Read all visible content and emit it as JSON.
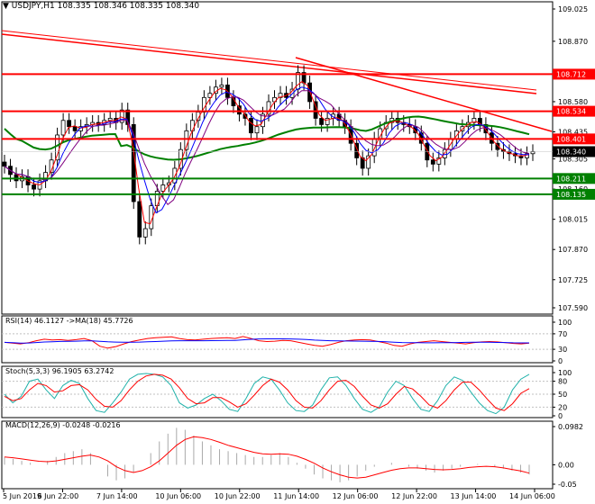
{
  "header": {
    "symbol": "USDJPY,H1",
    "ohlc": "108.335 108.346 108.335 108.340"
  },
  "chart_data": [
    {
      "type": "line",
      "title": "USDJPY,H1",
      "ylim": [
        107.59,
        109.025
      ],
      "y_ticks": [
        "109.025",
        "108.870",
        "108.725",
        "108.580",
        "108.435",
        "108.305",
        "108.160",
        "108.015",
        "107.870",
        "107.725",
        "107.590"
      ],
      "x_labels": [
        "5 Jun 2019",
        "6 Jun 22:00",
        "7 Jun 14:00",
        "10 Jun 06:00",
        "10 Jun 22:00",
        "11 Jun 14:00",
        "12 Jun 06:00",
        "12 Jun 22:00",
        "13 Jun 14:00",
        "14 Jun 06:00"
      ],
      "current_price": "108.340",
      "levels": [
        {
          "label": "108.712",
          "value": 108.712,
          "color": "#ff0000"
        },
        {
          "label": "108.534",
          "value": 108.534,
          "color": "#ff0000"
        },
        {
          "label": "108.401",
          "value": 108.401,
          "color": "#ff0000"
        },
        {
          "label": "108.211",
          "value": 108.211,
          "color": "#008000"
        },
        {
          "label": "108.135",
          "value": 108.135,
          "color": "#008000"
        }
      ],
      "close_series": [
        108.27,
        108.23,
        108.2,
        108.22,
        108.18,
        108.16,
        108.2,
        108.24,
        108.3,
        108.42,
        108.49,
        108.46,
        108.44,
        108.46,
        108.47,
        108.48,
        108.47,
        108.49,
        108.5,
        108.48,
        108.54,
        108.47,
        108.1,
        107.93,
        107.97,
        108.08,
        108.15,
        108.18,
        108.19,
        108.26,
        108.35,
        108.44,
        108.49,
        108.53,
        108.6,
        108.62,
        108.65,
        108.66,
        108.6,
        108.56,
        108.52,
        108.5,
        108.43,
        108.46,
        108.52,
        108.58,
        108.6,
        108.62,
        108.6,
        108.64,
        108.72,
        108.67,
        108.58,
        108.5,
        108.47,
        108.5,
        108.52,
        108.49,
        108.46,
        108.38,
        108.31,
        108.26,
        108.32,
        108.4,
        108.45,
        108.48,
        108.5,
        108.48,
        108.47,
        108.46,
        108.43,
        108.38,
        108.3,
        108.28,
        108.31,
        108.35,
        108.4,
        108.44,
        108.46,
        108.48,
        108.5,
        108.47,
        108.43,
        108.38,
        108.35,
        108.34,
        108.33,
        108.32,
        108.31,
        108.33,
        108.34
      ],
      "series": [
        {
          "name": "MA slow",
          "color": "#008000"
        },
        {
          "name": "MA fast 1",
          "color": "#ff0000"
        },
        {
          "name": "MA fast 2",
          "color": "#0000ff"
        },
        {
          "name": "MA fast 3",
          "color": "#800080"
        }
      ]
    },
    {
      "type": "line",
      "title": "RSI(14) 46.1127 ->MA(18) 45.7726",
      "ylim": [
        0,
        100
      ],
      "y_ticks": [
        "100",
        "70",
        "30",
        "0"
      ],
      "values": [
        48,
        46,
        44,
        47,
        52,
        56,
        54,
        55,
        53,
        55,
        58,
        52,
        38,
        33,
        37,
        44,
        50,
        54,
        58,
        60,
        61,
        62,
        58,
        55,
        54,
        56,
        58,
        59,
        60,
        58,
        63,
        58,
        52,
        50,
        51,
        53,
        52,
        48,
        44,
        40,
        38,
        42,
        48,
        52,
        54,
        55,
        54,
        50,
        46,
        40,
        38,
        44,
        48,
        50,
        52,
        50,
        48,
        46,
        44,
        47,
        49,
        50,
        49,
        47,
        45,
        44,
        46
      ]
    },
    {
      "type": "line",
      "title": "Stoch(5,3,3) 96.1905 63.2742",
      "ylim": [
        0,
        100
      ],
      "y_ticks": [
        "100",
        "80",
        "50",
        "20",
        "0"
      ],
      "k": [
        50,
        30,
        45,
        80,
        85,
        60,
        40,
        70,
        82,
        75,
        40,
        12,
        8,
        30,
        55,
        85,
        96,
        98,
        96,
        90,
        70,
        30,
        18,
        25,
        40,
        50,
        35,
        15,
        10,
        40,
        75,
        90,
        85,
        60,
        30,
        12,
        10,
        25,
        60,
        88,
        90,
        70,
        40,
        15,
        8,
        20,
        55,
        80,
        70,
        40,
        15,
        10,
        35,
        70,
        90,
        82,
        55,
        30,
        12,
        5,
        20,
        60,
        85,
        96
      ],
      "d": [
        45,
        35,
        40,
        60,
        75,
        70,
        55,
        58,
        70,
        72,
        60,
        38,
        22,
        20,
        35,
        60,
        80,
        92,
        96,
        94,
        85,
        65,
        40,
        28,
        30,
        42,
        42,
        32,
        20,
        28,
        48,
        70,
        85,
        78,
        60,
        35,
        20,
        18,
        35,
        60,
        80,
        82,
        68,
        45,
        25,
        18,
        28,
        50,
        68,
        62,
        45,
        25,
        18,
        35,
        60,
        78,
        78,
        60,
        38,
        18,
        12,
        28,
        52,
        63
      ]
    },
    {
      "type": "bar",
      "title": "MACD(12,26,9) -0.0248 -0.0216",
      "ylim": [
        -0.05,
        0.0982
      ],
      "y_ticks": [
        "0.0982",
        "0.00",
        "-0.05"
      ],
      "histogram": [
        0.02,
        0.015,
        0.01,
        0.005,
        0.0,
        0.01,
        0.02,
        0.03,
        0.035,
        0.04,
        0.03,
        0.0,
        -0.03,
        -0.04,
        -0.035,
        -0.02,
        0.0,
        0.03,
        0.06,
        0.08,
        0.095,
        0.09,
        0.075,
        0.06,
        0.05,
        0.04,
        0.035,
        0.03,
        0.025,
        0.02,
        0.02,
        0.025,
        0.03,
        0.02,
        0.005,
        -0.01,
        -0.025,
        -0.035,
        -0.04,
        -0.045,
        -0.04,
        -0.03,
        -0.015,
        -0.005,
        0.0,
        0.005,
        0.0,
        -0.005,
        -0.01,
        -0.015,
        -0.02,
        -0.015,
        -0.01,
        -0.005,
        0.0,
        0.002,
        0.0,
        -0.005,
        -0.01,
        -0.015,
        -0.02,
        -0.025
      ],
      "signal": [
        0.02,
        0.018,
        0.015,
        0.012,
        0.009,
        0.008,
        0.01,
        0.014,
        0.018,
        0.022,
        0.025,
        0.02,
        0.01,
        -0.005,
        -0.015,
        -0.02,
        -0.015,
        -0.005,
        0.01,
        0.03,
        0.05,
        0.065,
        0.072,
        0.07,
        0.065,
        0.058,
        0.05,
        0.044,
        0.038,
        0.032,
        0.028,
        0.027,
        0.028,
        0.027,
        0.022,
        0.014,
        0.004,
        -0.008,
        -0.018,
        -0.026,
        -0.032,
        -0.034,
        -0.032,
        -0.026,
        -0.02,
        -0.014,
        -0.01,
        -0.008,
        -0.008,
        -0.01,
        -0.012,
        -0.013,
        -0.012,
        -0.01,
        -0.007,
        -0.005,
        -0.004,
        -0.005,
        -0.008,
        -0.012,
        -0.016,
        -0.0216
      ]
    }
  ]
}
